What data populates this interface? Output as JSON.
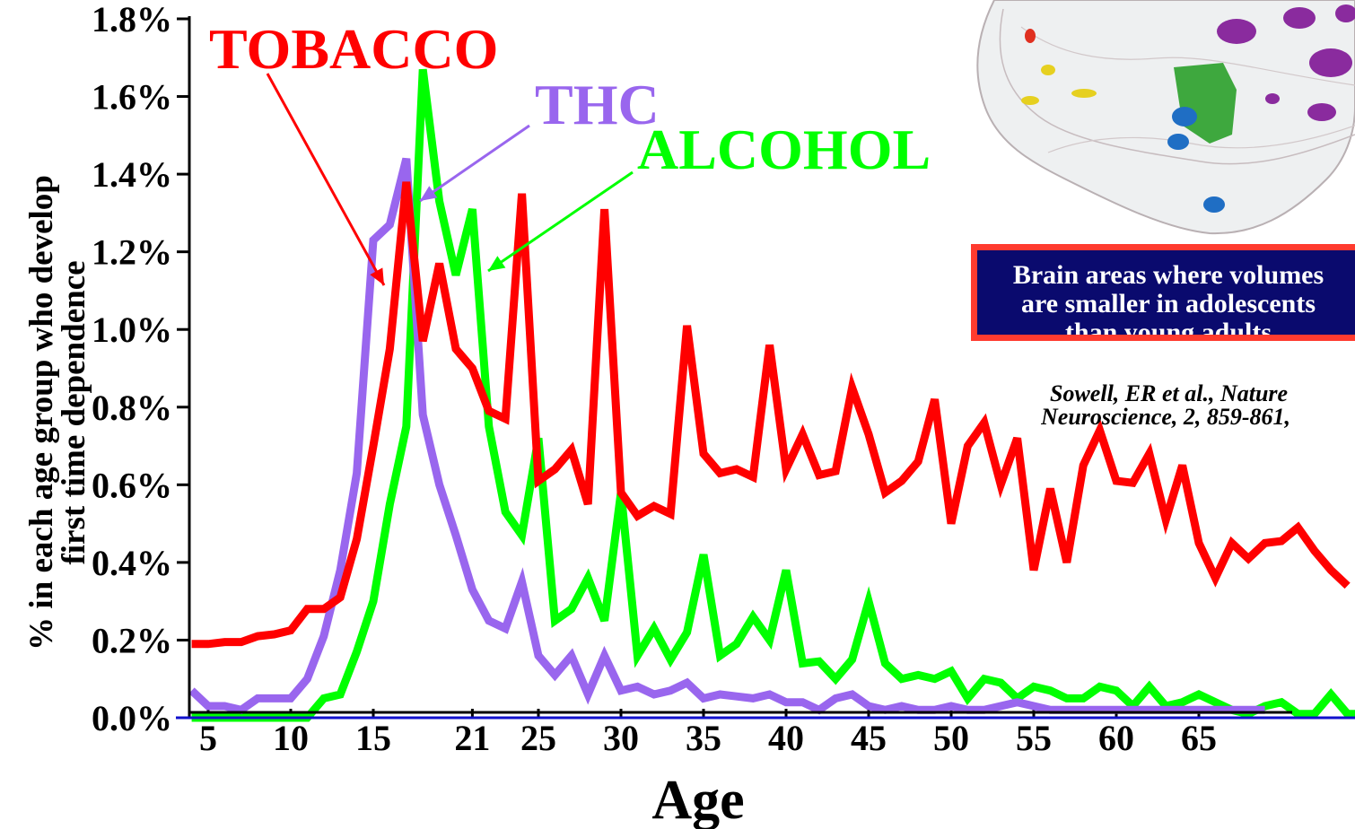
{
  "chart_data": {
    "type": "line",
    "title": "",
    "xlabel": "Age",
    "ylabel": "% in each age group who develop first time dependence",
    "ylabel_lines": [
      "% in each age group who develop",
      "first time dependence"
    ],
    "xlim": [
      4,
      75
    ],
    "ylim": [
      0,
      1.8
    ],
    "x_ticks": [
      5,
      10,
      15,
      21,
      25,
      30,
      35,
      40,
      45,
      50,
      55,
      60,
      65
    ],
    "y_ticks": [
      0.0,
      0.2,
      0.4,
      0.6,
      0.8,
      1.0,
      1.2,
      1.4,
      1.6,
      1.8
    ],
    "y_tick_labels": [
      "0.0%",
      "0.2%",
      "0.4%",
      "0.6%",
      "0.8%",
      "1.0%",
      "1.2%",
      "1.4%",
      "1.6%",
      "1.8%"
    ],
    "grid": false,
    "legend": "none",
    "series": [
      {
        "name": "TOBACCO",
        "color": "#ff0000",
        "x": [
          4,
          5,
          6,
          7,
          8,
          9,
          10,
          11,
          12,
          13,
          14,
          15,
          16,
          17,
          18,
          19,
          20,
          21,
          22,
          23,
          24,
          25,
          26,
          27,
          28,
          29,
          30,
          31,
          32,
          33,
          34,
          35,
          36,
          37,
          38,
          39,
          40,
          41,
          42,
          43,
          44,
          45,
          46,
          47,
          48,
          49,
          50,
          51,
          52,
          53,
          54,
          55,
          56,
          57,
          58,
          59,
          60,
          61,
          62,
          63,
          64,
          65,
          66,
          67,
          68,
          69,
          70,
          71,
          72,
          73,
          74
        ],
        "values": [
          0.19,
          0.19,
          0.195,
          0.195,
          0.21,
          0.215,
          0.225,
          0.28,
          0.28,
          0.31,
          0.46,
          0.7,
          0.95,
          1.38,
          0.97,
          1.17,
          0.95,
          0.9,
          0.79,
          0.77,
          1.35,
          0.61,
          0.64,
          0.69,
          0.55,
          1.31,
          0.58,
          0.52,
          0.545,
          0.525,
          1.01,
          0.68,
          0.63,
          0.64,
          0.62,
          0.96,
          0.64,
          0.73,
          0.625,
          0.635,
          0.85,
          0.73,
          0.58,
          0.61,
          0.66,
          0.82,
          0.5,
          0.7,
          0.76,
          0.6,
          0.72,
          0.38,
          0.59,
          0.4,
          0.65,
          0.74,
          0.61,
          0.605,
          0.68,
          0.51,
          0.65,
          0.45,
          0.36,
          0.45,
          0.41,
          0.45,
          0.455,
          0.49,
          0.43,
          0.38,
          0.34
        ]
      },
      {
        "name": "THC",
        "color": "#9966ee",
        "x": [
          4,
          5,
          6,
          7,
          8,
          9,
          10,
          11,
          12,
          13,
          14,
          15,
          16,
          17,
          18,
          19,
          20,
          21,
          22,
          23,
          24,
          25,
          26,
          27,
          28,
          29,
          30,
          31,
          32,
          33,
          34,
          35,
          36,
          37,
          38,
          39,
          40,
          41,
          42,
          43,
          44,
          45,
          46,
          47,
          48,
          49,
          50,
          51,
          52,
          53,
          54,
          55,
          56,
          57,
          58,
          59,
          60,
          61,
          62,
          63,
          64,
          65,
          66,
          67,
          68,
          69
        ],
        "values": [
          0.07,
          0.03,
          0.03,
          0.02,
          0.05,
          0.05,
          0.05,
          0.1,
          0.21,
          0.38,
          0.63,
          1.23,
          1.27,
          1.44,
          0.78,
          0.6,
          0.47,
          0.33,
          0.25,
          0.23,
          0.35,
          0.16,
          0.11,
          0.16,
          0.06,
          0.16,
          0.07,
          0.08,
          0.06,
          0.07,
          0.09,
          0.05,
          0.06,
          0.055,
          0.05,
          0.06,
          0.04,
          0.04,
          0.02,
          0.05,
          0.06,
          0.03,
          0.02,
          0.03,
          0.02,
          0.02,
          0.03,
          0.02,
          0.02,
          0.03,
          0.04,
          0.03,
          0.02,
          0.02,
          0.02,
          0.02,
          0.02,
          0.02,
          0.02,
          0.02,
          0.02,
          0.02,
          0.02,
          0.02,
          0.02,
          0.02
        ]
      },
      {
        "name": "ALCOHOL",
        "color": "#00ff00",
        "x": [
          4,
          5,
          6,
          7,
          8,
          9,
          10,
          11,
          12,
          13,
          14,
          15,
          16,
          17,
          18,
          19,
          20,
          21,
          22,
          23,
          24,
          25,
          26,
          27,
          28,
          29,
          30,
          31,
          32,
          33,
          34,
          35,
          36,
          37,
          38,
          39,
          40,
          41,
          42,
          43,
          44,
          45,
          46,
          47,
          48,
          49,
          50,
          51,
          52,
          53,
          54,
          55,
          56,
          57,
          58,
          59,
          60,
          61,
          62,
          63,
          64,
          65,
          66,
          67,
          68,
          69,
          70,
          71,
          72,
          73,
          74,
          75
        ],
        "values": [
          0.0,
          0.0,
          0.0,
          0.0,
          0.0,
          0.0,
          0.0,
          0.0,
          0.05,
          0.06,
          0.17,
          0.3,
          0.55,
          0.75,
          1.67,
          1.33,
          1.14,
          1.31,
          0.75,
          0.53,
          0.47,
          0.72,
          0.25,
          0.28,
          0.36,
          0.25,
          0.58,
          0.16,
          0.23,
          0.15,
          0.22,
          0.42,
          0.16,
          0.19,
          0.26,
          0.2,
          0.38,
          0.14,
          0.145,
          0.1,
          0.15,
          0.3,
          0.14,
          0.1,
          0.11,
          0.1,
          0.12,
          0.05,
          0.1,
          0.09,
          0.05,
          0.08,
          0.07,
          0.05,
          0.05,
          0.08,
          0.07,
          0.03,
          0.08,
          0.03,
          0.04,
          0.06,
          0.04,
          0.02,
          0.01,
          0.03,
          0.04,
          0.01,
          0.01,
          0.06,
          0.01,
          0.01
        ]
      }
    ],
    "annotations": [
      {
        "label": "TOBACCO",
        "color": "#ff0000"
      },
      {
        "label": "THC",
        "color": "#9966ee"
      },
      {
        "label": "ALCOHOL",
        "color": "#00ff00"
      }
    ]
  },
  "callout": {
    "lines": [
      "Brain areas where volumes",
      "are smaller in adolescents",
      "than young adults"
    ],
    "border_color": "#ff3b2f",
    "background_color": "#0a0a6e"
  },
  "citation": {
    "lines": [
      "Sowell, ER  et al., Nature",
      "Neuroscience, 2, 859-861,"
    ]
  },
  "brain_image": {
    "icon": "brain-scan-illustration",
    "region_colors": [
      "#8a2b9e",
      "#3ea83e",
      "#1f6ec4",
      "#e6d020",
      "#e03020"
    ]
  }
}
